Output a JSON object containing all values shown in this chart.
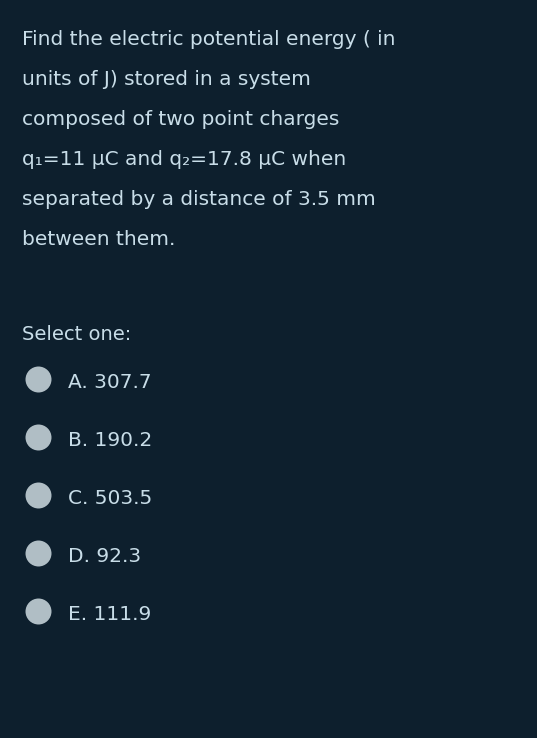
{
  "background_color": "#0d1f2d",
  "text_color": "#c8dde8",
  "question_lines": [
    "Find the electric potential energy ( in",
    "units of J) stored in a system",
    "composed of two point charges",
    "q₁=11 μC and q₂=17.8 μC when",
    "separated by a distance of 3.5 mm",
    "between them."
  ],
  "select_one_label": "Select one:",
  "options": [
    "A. 307.7",
    "B. 190.2",
    "C. 503.5",
    "D. 92.3",
    "E. 111.9"
  ],
  "circle_fill_color": "#b0bec5",
  "circle_edge_color": "#cfd8dc",
  "font_size_question": 14.5,
  "font_size_options": 14.5,
  "font_size_select": 14.0,
  "font_family": "DejaVu Sans"
}
